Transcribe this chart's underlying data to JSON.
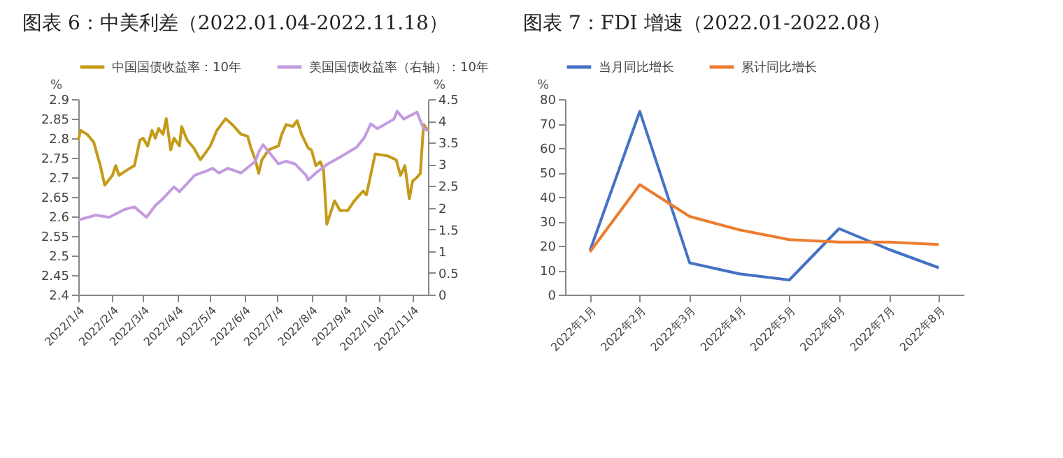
{
  "chart_data": [
    {
      "type": "line",
      "title": "图表 6：中美利差（2022.01.04-2022.11.18）",
      "ylabel": "%",
      "y2label": "%",
      "legend": "top",
      "line_style": "solid",
      "xlim": [
        "2022-01-04",
        "2022-11-18"
      ],
      "xticks": [
        {
          "value": "2022-01-04",
          "label": "2022/1/4"
        },
        {
          "value": "2022-02-04",
          "label": "2022/2/4"
        },
        {
          "value": "2022-03-04",
          "label": "2022/3/4"
        },
        {
          "value": "2022-04-04",
          "label": "2022/4/4"
        },
        {
          "value": "2022-05-04",
          "label": "2022/5/4"
        },
        {
          "value": "2022-06-04",
          "label": "2022/6/4"
        },
        {
          "value": "2022-07-04",
          "label": "2022/7/4"
        },
        {
          "value": "2022-08-04",
          "label": "2022/8/4"
        },
        {
          "value": "2022-09-04",
          "label": "2022/9/4"
        },
        {
          "value": "2022-10-04",
          "label": "2022/10/4"
        },
        {
          "value": "2022-11-04",
          "label": "2022/11/4"
        }
      ],
      "ylim": [
        2.4,
        2.9
      ],
      "yticks": [
        2.4,
        2.45,
        2.5,
        2.55,
        2.6,
        2.65,
        2.7,
        2.75,
        2.8,
        2.85,
        2.9
      ],
      "y2lim": [
        0,
        4.5
      ],
      "y2ticks": [
        0,
        0.5,
        1,
        1.5,
        2,
        2.5,
        3,
        3.5,
        4,
        4.5
      ],
      "series": [
        {
          "name": "中国国债收益率：10年",
          "color": "#c49a18",
          "x": [
            "2022-01-04",
            "2022-01-06",
            "2022-01-12",
            "2022-01-18",
            "2022-01-24",
            "2022-01-28",
            "2022-02-04",
            "2022-02-07",
            "2022-02-10",
            "2022-02-18",
            "2022-02-24",
            "2022-03-01",
            "2022-03-04",
            "2022-03-08",
            "2022-03-12",
            "2022-03-15",
            "2022-03-18",
            "2022-03-22",
            "2022-03-25",
            "2022-03-29",
            "2022-04-01",
            "2022-04-06",
            "2022-04-08",
            "2022-04-13",
            "2022-04-19",
            "2022-04-25",
            "2022-04-29",
            "2022-05-04",
            "2022-05-10",
            "2022-05-14",
            "2022-05-18",
            "2022-05-24",
            "2022-06-01",
            "2022-06-07",
            "2022-06-10",
            "2022-06-14",
            "2022-06-17",
            "2022-06-20",
            "2022-06-26",
            "2022-06-30",
            "2022-07-05",
            "2022-07-08",
            "2022-07-12",
            "2022-07-18",
            "2022-07-22",
            "2022-07-26",
            "2022-08-01",
            "2022-08-04",
            "2022-08-08",
            "2022-08-12",
            "2022-08-15",
            "2022-08-18",
            "2022-08-25",
            "2022-08-30",
            "2022-09-06",
            "2022-09-12",
            "2022-09-20",
            "2022-09-23",
            "2022-10-01",
            "2022-10-12",
            "2022-10-20",
            "2022-10-24",
            "2022-10-28",
            "2022-11-01",
            "2022-11-04",
            "2022-11-08",
            "2022-11-11",
            "2022-11-14",
            "2022-11-18"
          ],
          "values": [
            2.795,
            2.82,
            2.81,
            2.79,
            2.73,
            2.68,
            2.705,
            2.73,
            2.705,
            2.72,
            2.73,
            2.795,
            2.8,
            2.78,
            2.82,
            2.8,
            2.825,
            2.81,
            2.85,
            2.77,
            2.8,
            2.78,
            2.83,
            2.795,
            2.775,
            2.745,
            2.76,
            2.78,
            2.82,
            2.835,
            2.85,
            2.835,
            2.81,
            2.805,
            2.775,
            2.745,
            2.71,
            2.745,
            2.77,
            2.775,
            2.78,
            2.81,
            2.835,
            2.83,
            2.845,
            2.81,
            2.775,
            2.77,
            2.73,
            2.74,
            2.72,
            2.58,
            2.64,
            2.615,
            2.615,
            2.64,
            2.665,
            2.655,
            2.76,
            2.755,
            2.745,
            2.705,
            2.73,
            2.645,
            2.69,
            2.7,
            2.71,
            2.835,
            2.82
          ]
        },
        {
          "name": "美国国债收益率（右轴）：10年",
          "color": "#c39be0",
          "axis": "y2",
          "x": [
            "2022-01-04",
            "2022-01-20",
            "2022-02-01",
            "2022-02-15",
            "2022-02-24",
            "2022-03-07",
            "2022-03-15",
            "2022-03-22",
            "2022-04-01",
            "2022-04-06",
            "2022-04-20",
            "2022-05-01",
            "2022-05-06",
            "2022-05-12",
            "2022-05-20",
            "2022-06-01",
            "2022-06-14",
            "2022-06-17",
            "2022-06-21",
            "2022-07-05",
            "2022-07-12",
            "2022-07-20",
            "2022-07-30",
            "2022-08-01",
            "2022-08-08",
            "2022-08-19",
            "2022-08-31",
            "2022-09-14",
            "2022-09-21",
            "2022-09-27",
            "2022-10-03",
            "2022-10-18",
            "2022-10-21",
            "2022-10-27",
            "2022-11-01",
            "2022-11-08",
            "2022-11-14",
            "2022-11-18"
          ],
          "values": [
            1.72,
            1.83,
            1.78,
            1.96,
            2.02,
            1.78,
            2.05,
            2.21,
            2.48,
            2.37,
            2.75,
            2.85,
            2.91,
            2.8,
            2.91,
            2.8,
            3.07,
            3.28,
            3.45,
            3.01,
            3.07,
            3.01,
            2.75,
            2.64,
            2.8,
            3.01,
            3.18,
            3.39,
            3.61,
            3.93,
            3.82,
            4.04,
            4.22,
            4.04,
            4.11,
            4.2,
            3.82,
            3.77
          ]
        }
      ]
    },
    {
      "type": "line",
      "title": "图表 7：FDI 增速（2022.01-2022.08）",
      "ylabel": "%",
      "legend": "top",
      "line_style": "solid",
      "categories": [
        "2022年1月",
        "2022年2月",
        "2022年3月",
        "2022年4月",
        "2022年5月",
        "2022年6月",
        "2022年7月",
        "2022年8月"
      ],
      "ylim": [
        0,
        80
      ],
      "yticks": [
        0,
        10,
        20,
        30,
        40,
        50,
        60,
        70,
        80
      ],
      "series": [
        {
          "name": "当月同比增长",
          "color": "#4472c4",
          "values": [
            18,
            75,
            13,
            8.5,
            6,
            27,
            18.5,
            11
          ]
        },
        {
          "name": "累计同比增长",
          "color": "#ed7d31",
          "values": [
            17.5,
            45,
            32,
            26.5,
            22.5,
            21.5,
            21.5,
            20.5
          ]
        }
      ]
    }
  ]
}
